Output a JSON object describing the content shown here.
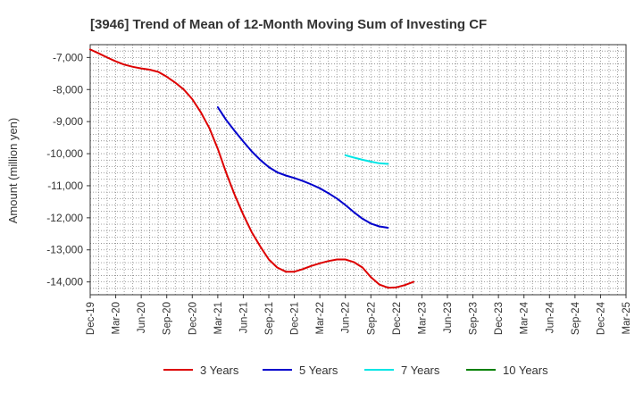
{
  "chart_data": {
    "type": "line",
    "title": "[3946]  Trend of Mean of 12-Month Moving Sum of Investing CF",
    "xlabel": "",
    "ylabel": "Amount (million yen)",
    "ylim": [
      -14400,
      -6600
    ],
    "y_ticks": [
      -7000,
      -8000,
      -9000,
      -10000,
      -11000,
      -12000,
      -13000,
      -14000
    ],
    "y_tick_labels": [
      "-7,000",
      "-8,000",
      "-9,000",
      "-10,000",
      "-11,000",
      "-12,000",
      "-13,000",
      "-14,000"
    ],
    "categories": [
      "Dec-19",
      "Mar-20",
      "Jun-20",
      "Sep-20",
      "Dec-20",
      "Mar-21",
      "Jun-21",
      "Sep-21",
      "Dec-21",
      "Mar-22",
      "Jun-22",
      "Sep-22",
      "Dec-22",
      "Mar-23",
      "Jun-23",
      "Sep-23",
      "Dec-23",
      "Mar-24",
      "Jun-24",
      "Sep-24",
      "Dec-24",
      "Mar-25"
    ],
    "grid": true,
    "legend_position": "bottom",
    "series": [
      {
        "name": "3 Years",
        "color": "#dd0000",
        "points": [
          {
            "x": 0.0,
            "y": -6750
          },
          {
            "x": 0.33,
            "y": -6870
          },
          {
            "x": 0.67,
            "y": -7000
          },
          {
            "x": 1.0,
            "y": -7120
          },
          {
            "x": 1.33,
            "y": -7220
          },
          {
            "x": 1.67,
            "y": -7290
          },
          {
            "x": 2.0,
            "y": -7340
          },
          {
            "x": 2.33,
            "y": -7380
          },
          {
            "x": 2.67,
            "y": -7450
          },
          {
            "x": 3.0,
            "y": -7600
          },
          {
            "x": 3.33,
            "y": -7780
          },
          {
            "x": 3.67,
            "y": -8000
          },
          {
            "x": 4.0,
            "y": -8300
          },
          {
            "x": 4.33,
            "y": -8700
          },
          {
            "x": 4.67,
            "y": -9200
          },
          {
            "x": 5.0,
            "y": -9850
          },
          {
            "x": 5.33,
            "y": -10600
          },
          {
            "x": 5.67,
            "y": -11300
          },
          {
            "x": 6.0,
            "y": -11900
          },
          {
            "x": 6.33,
            "y": -12450
          },
          {
            "x": 6.67,
            "y": -12900
          },
          {
            "x": 7.0,
            "y": -13300
          },
          {
            "x": 7.33,
            "y": -13550
          },
          {
            "x": 7.67,
            "y": -13680
          },
          {
            "x": 8.0,
            "y": -13680
          },
          {
            "x": 8.33,
            "y": -13600
          },
          {
            "x": 8.67,
            "y": -13500
          },
          {
            "x": 9.0,
            "y": -13420
          },
          {
            "x": 9.33,
            "y": -13350
          },
          {
            "x": 9.67,
            "y": -13300
          },
          {
            "x": 10.0,
            "y": -13300
          },
          {
            "x": 10.33,
            "y": -13380
          },
          {
            "x": 10.67,
            "y": -13550
          },
          {
            "x": 11.0,
            "y": -13850
          },
          {
            "x": 11.33,
            "y": -14080
          },
          {
            "x": 11.67,
            "y": -14180
          },
          {
            "x": 12.0,
            "y": -14170
          },
          {
            "x": 12.33,
            "y": -14100
          },
          {
            "x": 12.67,
            "y": -14000
          }
        ]
      },
      {
        "name": "5 Years",
        "color": "#0000cc",
        "points": [
          {
            "x": 5.0,
            "y": -8550
          },
          {
            "x": 5.33,
            "y": -8950
          },
          {
            "x": 5.67,
            "y": -9300
          },
          {
            "x": 6.0,
            "y": -9620
          },
          {
            "x": 6.33,
            "y": -9930
          },
          {
            "x": 6.67,
            "y": -10200
          },
          {
            "x": 7.0,
            "y": -10420
          },
          {
            "x": 7.33,
            "y": -10580
          },
          {
            "x": 7.67,
            "y": -10680
          },
          {
            "x": 8.0,
            "y": -10760
          },
          {
            "x": 8.33,
            "y": -10850
          },
          {
            "x": 8.67,
            "y": -10960
          },
          {
            "x": 9.0,
            "y": -11080
          },
          {
            "x": 9.33,
            "y": -11230
          },
          {
            "x": 9.67,
            "y": -11400
          },
          {
            "x": 10.0,
            "y": -11600
          },
          {
            "x": 10.33,
            "y": -11820
          },
          {
            "x": 10.67,
            "y": -12030
          },
          {
            "x": 11.0,
            "y": -12180
          },
          {
            "x": 11.33,
            "y": -12270
          },
          {
            "x": 11.67,
            "y": -12310
          }
        ]
      },
      {
        "name": "7 Years",
        "color": "#00e5e5",
        "points": [
          {
            "x": 10.0,
            "y": -10050
          },
          {
            "x": 10.33,
            "y": -10120
          },
          {
            "x": 10.67,
            "y": -10190
          },
          {
            "x": 11.0,
            "y": -10250
          },
          {
            "x": 11.33,
            "y": -10300
          },
          {
            "x": 11.67,
            "y": -10320
          }
        ]
      },
      {
        "name": "10 Years",
        "color": "#008000",
        "points": []
      }
    ]
  }
}
